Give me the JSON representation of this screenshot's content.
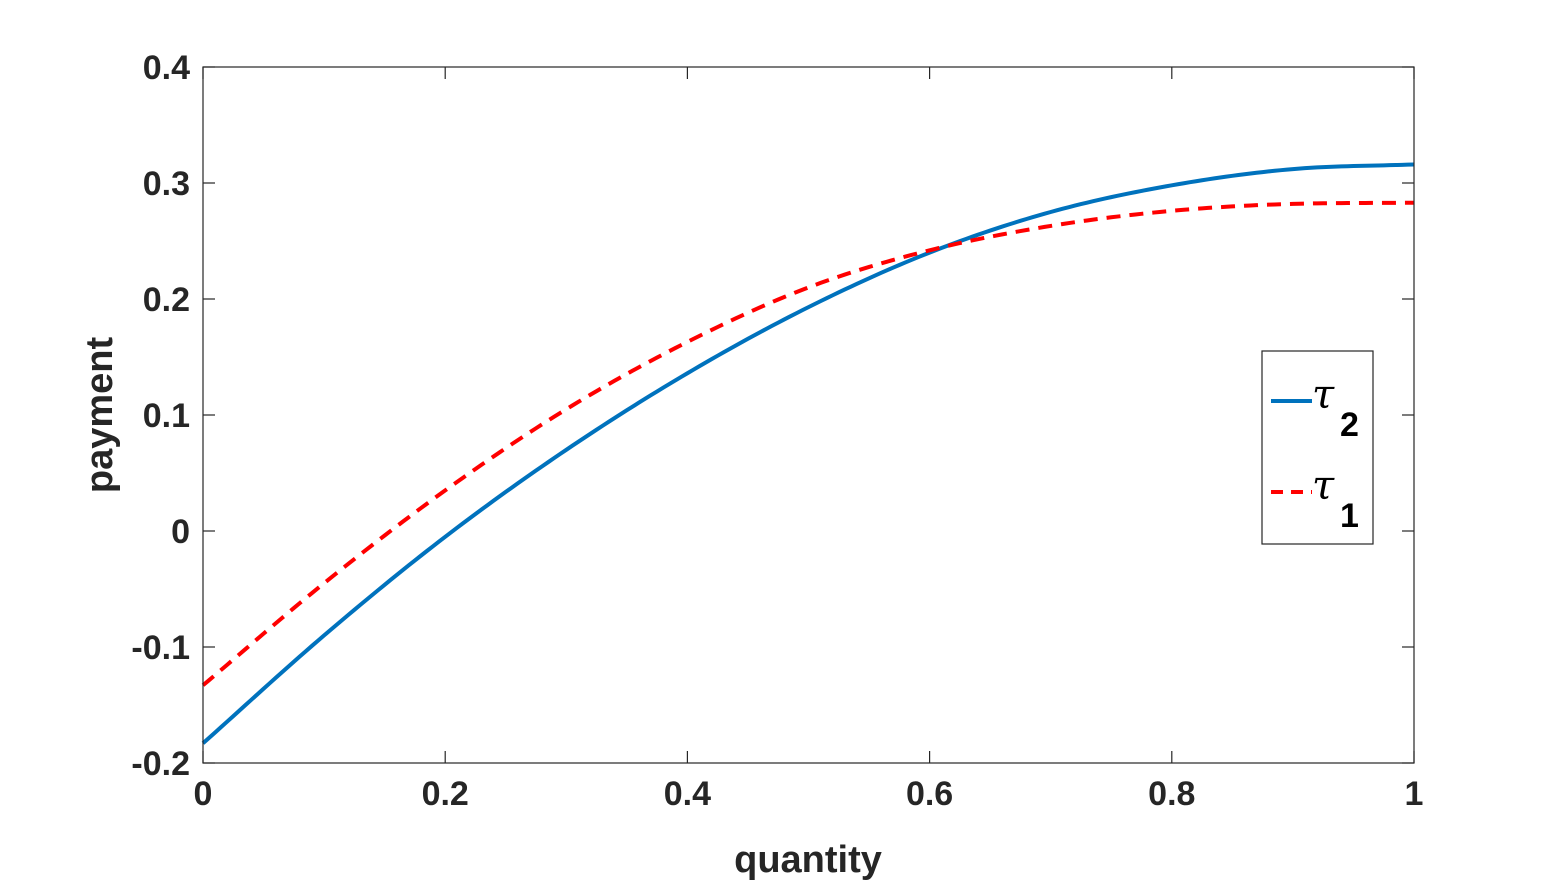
{
  "chart_data": {
    "type": "line",
    "title": "",
    "xlabel": "quantity",
    "ylabel": "payment",
    "xlim": [
      0,
      1
    ],
    "ylim": [
      -0.2,
      0.4
    ],
    "xticks": [
      0,
      0.2,
      0.4,
      0.6,
      0.8,
      1
    ],
    "xtick_labels": [
      "0",
      "0.2",
      "0.4",
      "0.6",
      "0.8",
      "1"
    ],
    "yticks": [
      -0.2,
      -0.1,
      0,
      0.1,
      0.2,
      0.3,
      0.4
    ],
    "ytick_labels": [
      "-0.2",
      "-0.1",
      "0",
      "0.1",
      "0.2",
      "0.3",
      "0.4"
    ],
    "grid": false,
    "legend_position": "right",
    "series": [
      {
        "name": "2",
        "legend_symbol": "τ",
        "color": "#0072BD",
        "style": "solid",
        "x": [
          0,
          0.1,
          0.2,
          0.3,
          0.4,
          0.5,
          0.6,
          0.7,
          0.8,
          0.9,
          1.0
        ],
        "y": [
          -0.183,
          -0.09,
          -0.005,
          0.07,
          0.136,
          0.193,
          0.24,
          0.275,
          0.298,
          0.312,
          0.316
        ]
      },
      {
        "name": "1",
        "legend_symbol": "τ",
        "color": "#FF0000",
        "style": "dashed",
        "x": [
          0,
          0.1,
          0.2,
          0.3,
          0.4,
          0.5,
          0.6,
          0.7,
          0.8,
          0.9,
          1.0
        ],
        "y": [
          -0.133,
          -0.045,
          0.035,
          0.105,
          0.163,
          0.21,
          0.242,
          0.263,
          0.276,
          0.282,
          0.283
        ]
      }
    ]
  }
}
